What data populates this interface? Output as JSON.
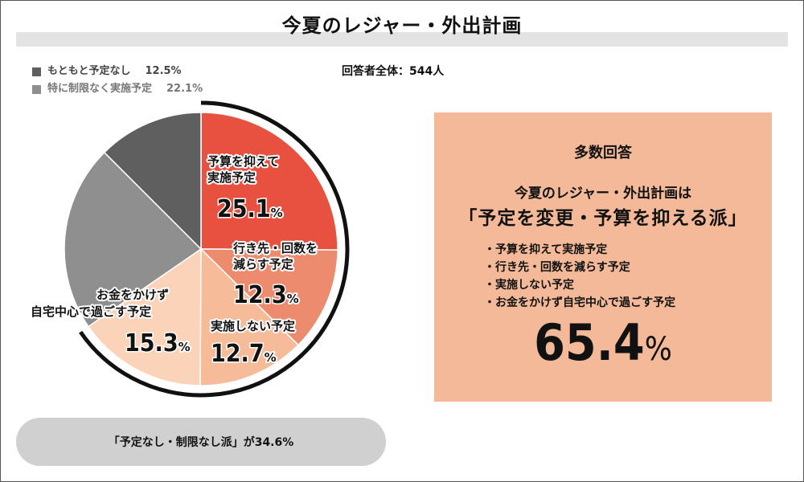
{
  "title": "今夏のレジャー・外出計画",
  "total_label": "回答者全体：544人",
  "legend": [
    {
      "label": "もともと予定なし",
      "value": "12.5%",
      "color": "#5f5f5f"
    },
    {
      "label": "特に制限なく実施予定",
      "value": "22.1%",
      "color": "#8f8f8f"
    }
  ],
  "slice_labels": [
    {
      "line1": "予算を抑えて",
      "line2": "実施予定",
      "pct": "25.1",
      "unit": "%"
    },
    {
      "line1": "行き先・回数を",
      "line2": "減らす予定",
      "pct": "12.3",
      "unit": "%"
    },
    {
      "line1": "実施しない予定",
      "pct": "12.7",
      "unit": "%"
    },
    {
      "line1": "お金をかけず",
      "line2": "自宅中心で過ごす予定",
      "pct": "15.3",
      "unit": "%"
    }
  ],
  "callout": "「予定なし・制限なし派」が34.6%",
  "panel": {
    "heading": "多数回答",
    "subtitle": "今夏のレジャー・外出計画は",
    "faction": "「予定を変更・予算を抑える派」",
    "items": [
      "予算を抑えて実施予定",
      "行き先・回数を減らす予定",
      "実施しない予定",
      "お金をかけず自宅中心で過ごす予定"
    ],
    "total_value": "65.4",
    "total_unit": "%"
  },
  "chart_data": {
    "type": "pie",
    "categories": [
      "予算を抑えて実施予定",
      "行き先・回数を減らす予定",
      "実施しない予定",
      "お金をかけず自宅中心で過ごす予定",
      "特に制限なく実施予定",
      "もともと予定なし"
    ],
    "values": [
      25.1,
      12.3,
      12.7,
      15.3,
      22.1,
      12.5
    ],
    "colors": [
      "#e8503f",
      "#ec8b6e",
      "#f6bb99",
      "#fbd3b8",
      "#8f8f8f",
      "#5f5f5f"
    ],
    "start": "12 o'clock, clockwise",
    "arc_group": [
      "予算を抑えて実施予定",
      "行き先・回数を減らす予定",
      "実施しない予定",
      "お金をかけず自宅中心で過ごす予定"
    ]
  }
}
